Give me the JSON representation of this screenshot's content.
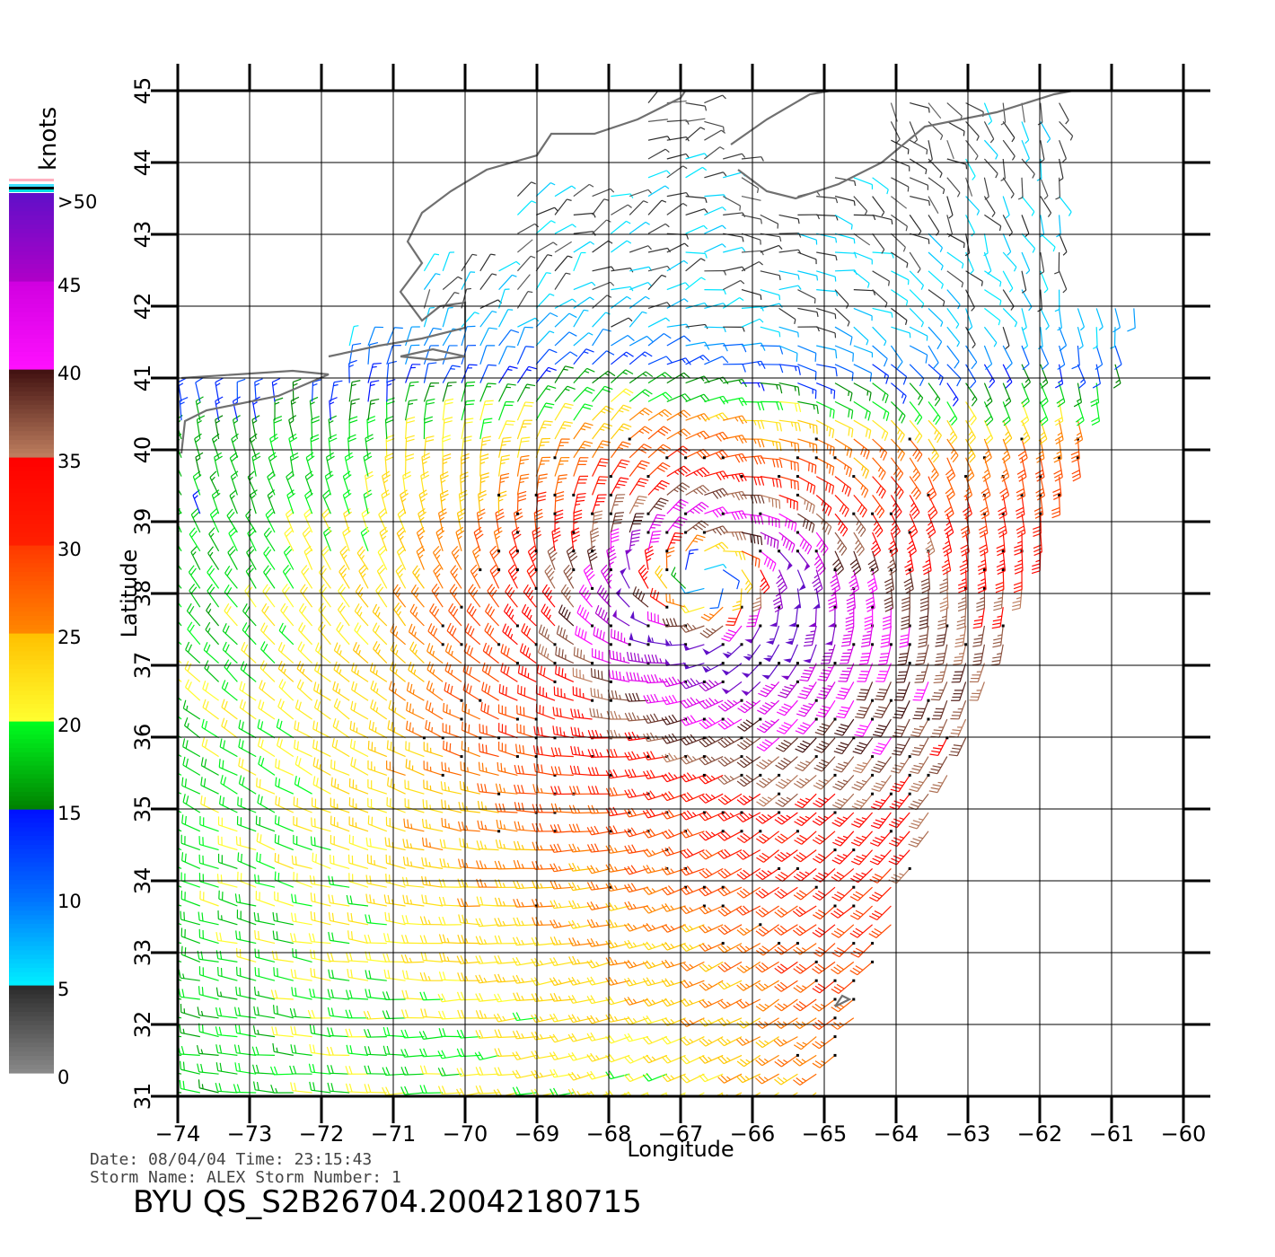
{
  "chart_data": {
    "type": "scatter",
    "title": "",
    "xlabel": "Longitude",
    "ylabel": "Latitude",
    "xlim": [
      -74,
      -60
    ],
    "ylim": [
      31,
      45
    ],
    "x_ticks": [
      "-74",
      "-73",
      "-72",
      "-71",
      "-70",
      "-69",
      "-68",
      "-67",
      "-66",
      "-65",
      "-64",
      "-63",
      "-62",
      "-61",
      "-60"
    ],
    "y_ticks": [
      "31",
      "32",
      "33",
      "34",
      "35",
      "36",
      "37",
      "38",
      "39",
      "40",
      "41",
      "42",
      "43",
      "44",
      "45"
    ],
    "grid": true,
    "colorbar": {
      "unit_label": "knots",
      "labels": [
        ">50",
        "45",
        "40",
        "35",
        "30",
        "25",
        "20",
        "15",
        "10",
        "5",
        "0"
      ],
      "bands": [
        {
          "from": 0,
          "to": 5,
          "colors": [
            "#8a8a8a",
            "#2a2a2a"
          ]
        },
        {
          "from": 5,
          "to": 10,
          "colors": [
            "#00f0ff",
            "#0070ff"
          ]
        },
        {
          "from": 10,
          "to": 15,
          "colors": [
            "#0070ff",
            "#0010ff"
          ]
        },
        {
          "from": 15,
          "to": 20,
          "colors": [
            "#008000",
            "#00ff20"
          ]
        },
        {
          "from": 20,
          "to": 25,
          "colors": [
            "#ffff30",
            "#ffc000"
          ]
        },
        {
          "from": 25,
          "to": 30,
          "colors": [
            "#ff8800",
            "#ff3800"
          ]
        },
        {
          "from": 30,
          "to": 35,
          "colors": [
            "#ff2000",
            "#ff0000"
          ]
        },
        {
          "from": 35,
          "to": 40,
          "colors": [
            "#c08060",
            "#401010"
          ]
        },
        {
          "from": 40,
          "to": 45,
          "colors": [
            "#ff10ff",
            "#d000e0"
          ]
        },
        {
          "from": 45,
          "to": 50,
          "colors": [
            "#b000c8",
            "#6010c8"
          ]
        }
      ]
    },
    "storm_center": {
      "lon": -66.6,
      "lat": 38.1
    },
    "swath": {
      "lon_min": -74,
      "lat_min": 31,
      "east_edge": [
        [
          -65,
          31
        ],
        [
          -60.6,
          42
        ]
      ]
    },
    "series": [
      {
        "name": "wind barbs",
        "encoding": "speed (knots) and direction"
      }
    ]
  },
  "info": {
    "date_line": "Date: 08/04/04   Time: 23:15:43",
    "storm_line": "Storm  Name: ALEX   Storm  Number: 1",
    "product_id": "BYU  QS_S2B26704.20042180715"
  }
}
